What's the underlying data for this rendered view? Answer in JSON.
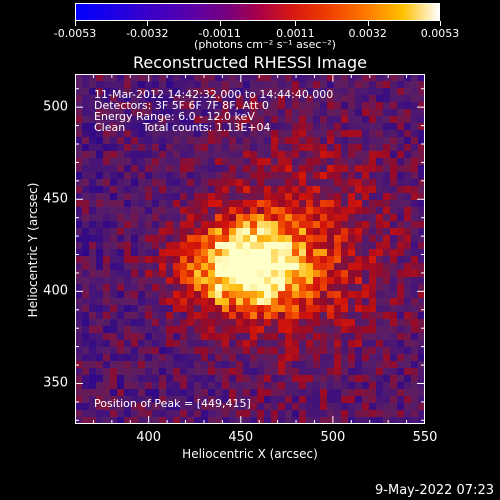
{
  "colorbar": {
    "tick_labels": [
      "-0.0053",
      "-0.0032",
      "-0.0011",
      "0.0011",
      "0.0032",
      "0.0053"
    ],
    "unit": "(photons cm⁻² s⁻¹ asec⁻²)",
    "range": [
      -0.0053,
      0.0053
    ]
  },
  "title": "Reconstructed RHESSI Image",
  "info": {
    "time_range": "11-Mar-2012 14:42:32.000 to 14:44:40.000",
    "detectors": "Detectors: 3F 5F 6F 7F 8F, Att 0",
    "energy": "Energy Range: 6.0 - 12.0 keV",
    "clean": "Clean     Total counts: 1.13E+04"
  },
  "peak_label": "Position of Peak = [449,415]",
  "footer_date": "9-May-2022 07:23",
  "chart_data": {
    "type": "heatmap",
    "title": "Reconstructed RHESSI Image",
    "xlabel": "Heliocentric X (arcsec)",
    "ylabel": "Heliocentric Y (arcsec)",
    "xlim": [
      360,
      550
    ],
    "ylim": [
      328,
      518
    ],
    "x_ticks": [
      "400",
      "450",
      "500",
      "550"
    ],
    "y_ticks": [
      "350",
      "400",
      "450",
      "500"
    ],
    "x_tick_values": [
      400,
      450,
      500,
      550
    ],
    "y_tick_values": [
      350,
      400,
      450,
      500
    ],
    "peak": [
      449,
      415
    ],
    "colormap": "blue-purple-red-orange-yellow-white",
    "grid": false
  }
}
